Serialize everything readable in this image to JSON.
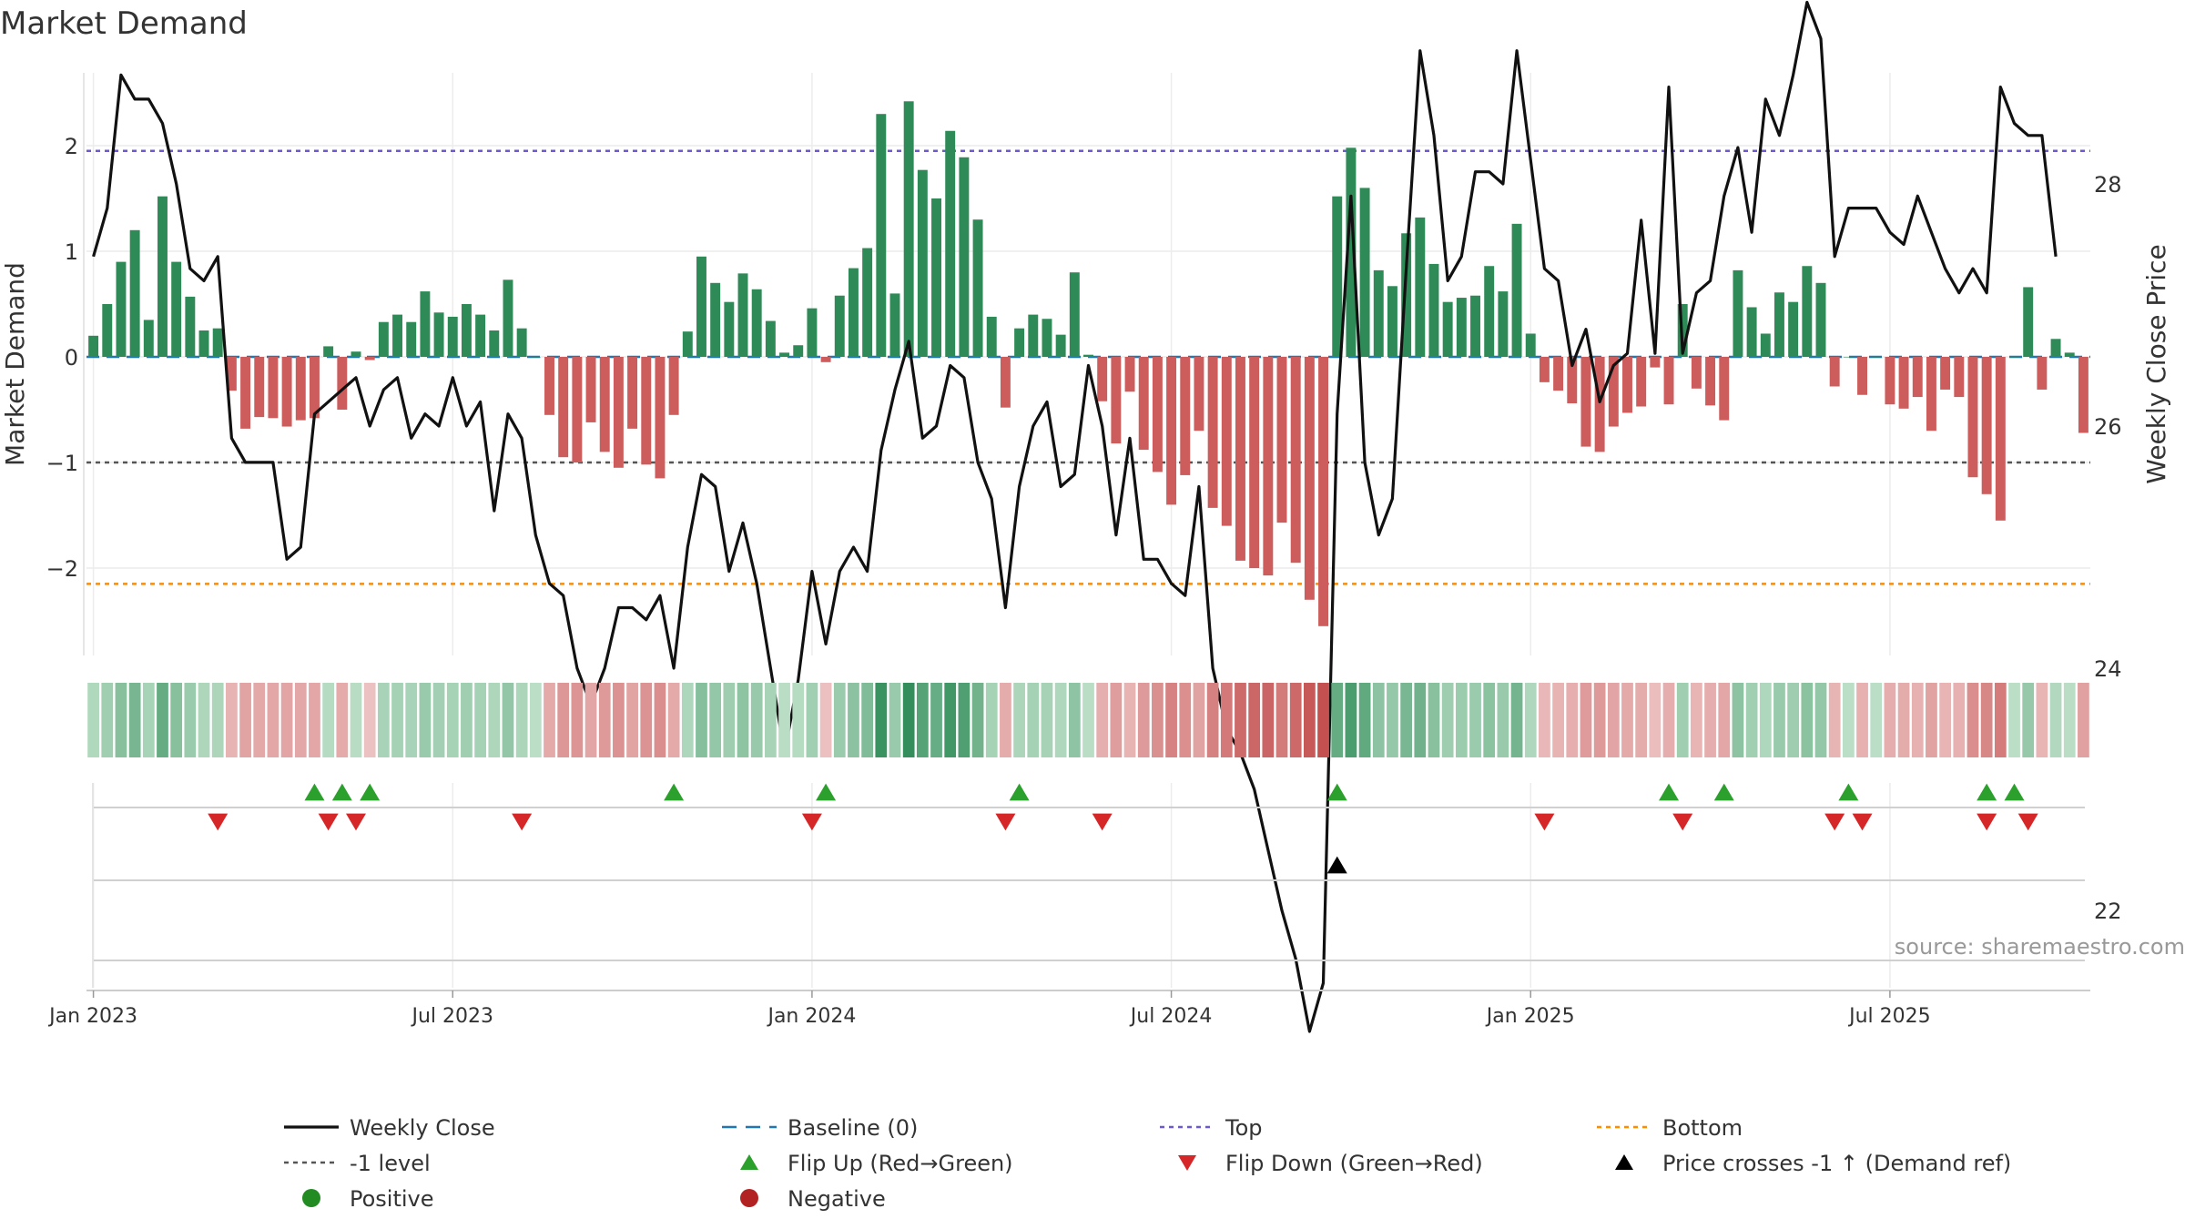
{
  "chart_data": {
    "type": "bar",
    "title": "Market Demand",
    "ylabel": "Market Demand",
    "y2label": "Weekly Close Price",
    "ylim": [
      -2.8,
      2.7
    ],
    "y2lim": [
      20.3,
      29.8
    ],
    "yticks": [
      "2",
      "1",
      "0",
      "−1",
      "−2"
    ],
    "y2ticks": [
      "28",
      "26",
      "24",
      "22"
    ],
    "x_tick_labels": [
      "Jan 2023",
      "Jul 2023",
      "Jan 2024",
      "Jul 2024",
      "Jan 2025",
      "Jul 2025"
    ],
    "x_tick_weeks": [
      0,
      26,
      52,
      78,
      104,
      130
    ],
    "first_week_offset": -1,
    "levels": {
      "top": 1.95,
      "bottom": -2.15,
      "minus_one": -1.0,
      "baseline": 0
    },
    "source": "source: sharemaestro.com",
    "colors": {
      "positive_bar": "#2e8b57",
      "negative_bar": "#cd5c5c",
      "price_line": "#111111",
      "baseline": "#1f77b4",
      "top": "#6a5acd",
      "minus_one": "#555555",
      "bottom": "#ff8c00",
      "flip_up": "#2ca02c",
      "flip_down": "#d62728",
      "price_cross": "#000000",
      "positive_dot": "#228b22",
      "negative_dot": "#b22222"
    },
    "demand": [
      0.2,
      0.5,
      0.9,
      1.2,
      0.35,
      1.52,
      0.9,
      0.57,
      0.25,
      0.27,
      -0.32,
      -0.68,
      -0.57,
      -0.58,
      -0.66,
      -0.6,
      -0.58,
      0.1,
      -0.5,
      0.05,
      -0.03,
      0.33,
      0.4,
      0.33,
      0.62,
      0.42,
      0.38,
      0.5,
      0.4,
      0.25,
      0.73,
      0.27,
      0.0,
      -0.55,
      -0.95,
      -1.0,
      -0.62,
      -0.9,
      -1.05,
      -0.68,
      -1.02,
      -1.15,
      -0.55,
      0.24,
      0.95,
      0.7,
      0.52,
      0.79,
      0.64,
      0.34,
      0.04,
      0.11,
      0.46,
      -0.05,
      0.58,
      0.84,
      1.03,
      2.3,
      0.6,
      2.42,
      1.77,
      1.5,
      2.14,
      1.89,
      1.3,
      0.38,
      -0.48,
      0.27,
      0.4,
      0.36,
      0.21,
      0.8,
      0.02,
      -0.42,
      -0.82,
      -0.33,
      -0.88,
      -1.09,
      -1.4,
      -1.12,
      -0.7,
      -1.43,
      -1.6,
      -1.93,
      -2.0,
      -2.07,
      -1.57,
      -1.95,
      -2.3,
      -2.55,
      1.52,
      1.98,
      1.6,
      0.82,
      0.67,
      1.17,
      1.32,
      0.88,
      0.52,
      0.56,
      0.58,
      0.86,
      0.62,
      1.26,
      0.22,
      -0.24,
      -0.32,
      -0.44,
      -0.85,
      -0.9,
      -0.66,
      -0.53,
      -0.47,
      -0.1,
      -0.45,
      0.5,
      -0.3,
      -0.46,
      -0.6,
      0.82,
      0.47,
      0.22,
      0.61,
      0.52,
      0.86,
      0.7,
      -0.28,
      0.0,
      -0.36,
      0.0,
      -0.45,
      -0.49,
      -0.38,
      -0.7,
      -0.31,
      -0.38,
      -1.14,
      -1.3,
      -1.55,
      0.0,
      0.66,
      -0.31,
      0.17,
      0.04,
      -0.72
    ],
    "price": [
      27.4,
      27.8,
      28.9,
      28.7,
      28.7,
      28.5,
      28.0,
      27.3,
      27.2,
      27.4,
      25.9,
      25.7,
      25.7,
      25.7,
      24.9,
      25.0,
      26.1,
      26.2,
      26.3,
      26.4,
      26.0,
      26.3,
      26.4,
      25.9,
      26.1,
      26.0,
      26.4,
      26.0,
      26.2,
      25.3,
      26.1,
      25.9,
      25.1,
      24.7,
      24.6,
      24.0,
      23.7,
      24.0,
      24.5,
      24.5,
      24.4,
      24.6,
      24.0,
      25.0,
      25.6,
      25.5,
      24.8,
      25.2,
      24.7,
      24.0,
      23.3,
      23.9,
      24.8,
      24.2,
      24.8,
      25.0,
      24.8,
      25.8,
      26.3,
      26.7,
      25.9,
      26.0,
      26.5,
      26.4,
      25.7,
      25.4,
      24.5,
      25.5,
      26.0,
      26.2,
      25.5,
      25.6,
      26.5,
      26.0,
      25.1,
      25.9,
      24.9,
      24.9,
      24.7,
      24.6,
      25.5,
      24.0,
      23.5,
      23.3,
      23.0,
      22.5,
      22.0,
      21.6,
      21.0,
      21.4,
      26.1,
      27.9,
      25.7,
      25.1,
      25.4,
      27.3,
      29.1,
      28.4,
      27.2,
      27.4,
      28.1,
      28.1,
      28.0,
      29.1,
      28.2,
      27.3,
      27.2,
      26.5,
      26.8,
      26.2,
      26.5,
      26.6,
      27.7,
      26.6,
      28.8,
      26.6,
      27.1,
      27.2,
      27.9,
      28.3,
      27.6,
      28.7,
      28.4,
      28.9,
      29.5,
      29.2,
      27.4,
      27.8,
      27.8,
      27.8,
      27.6,
      27.5,
      27.9,
      27.6,
      27.3,
      27.1,
      27.3,
      27.1,
      28.8,
      28.5,
      28.4,
      28.4,
      27.4
    ],
    "flip_up_weeks": [
      16,
      18,
      20,
      42,
      53,
      67,
      90,
      114,
      118,
      127,
      137,
      139
    ],
    "flip_down_weeks": [
      9,
      17,
      19,
      31,
      52,
      66,
      73,
      105,
      115,
      126,
      128,
      137,
      140
    ],
    "price_cross_weeks": [
      90
    ],
    "legend": [
      {
        "label": "Weekly Close",
        "symbol": "line"
      },
      {
        "label": "Baseline (0)",
        "symbol": "dash"
      },
      {
        "label": "Top",
        "symbol": "dot-line-top"
      },
      {
        "label": "Bottom",
        "symbol": "dot-line-bottom"
      },
      {
        "label": "-1 level",
        "symbol": "dot-line-minus"
      },
      {
        "label": "Flip Up (Red→Green)",
        "symbol": "triangle-up"
      },
      {
        "label": "Flip Down (Green→Red)",
        "symbol": "triangle-down"
      },
      {
        "label": "Price crosses -1 ↑ (Demand ref)",
        "symbol": "triangle-black"
      },
      {
        "label": "Positive",
        "symbol": "dot-green"
      },
      {
        "label": "Negative",
        "symbol": "dot-red"
      }
    ]
  }
}
